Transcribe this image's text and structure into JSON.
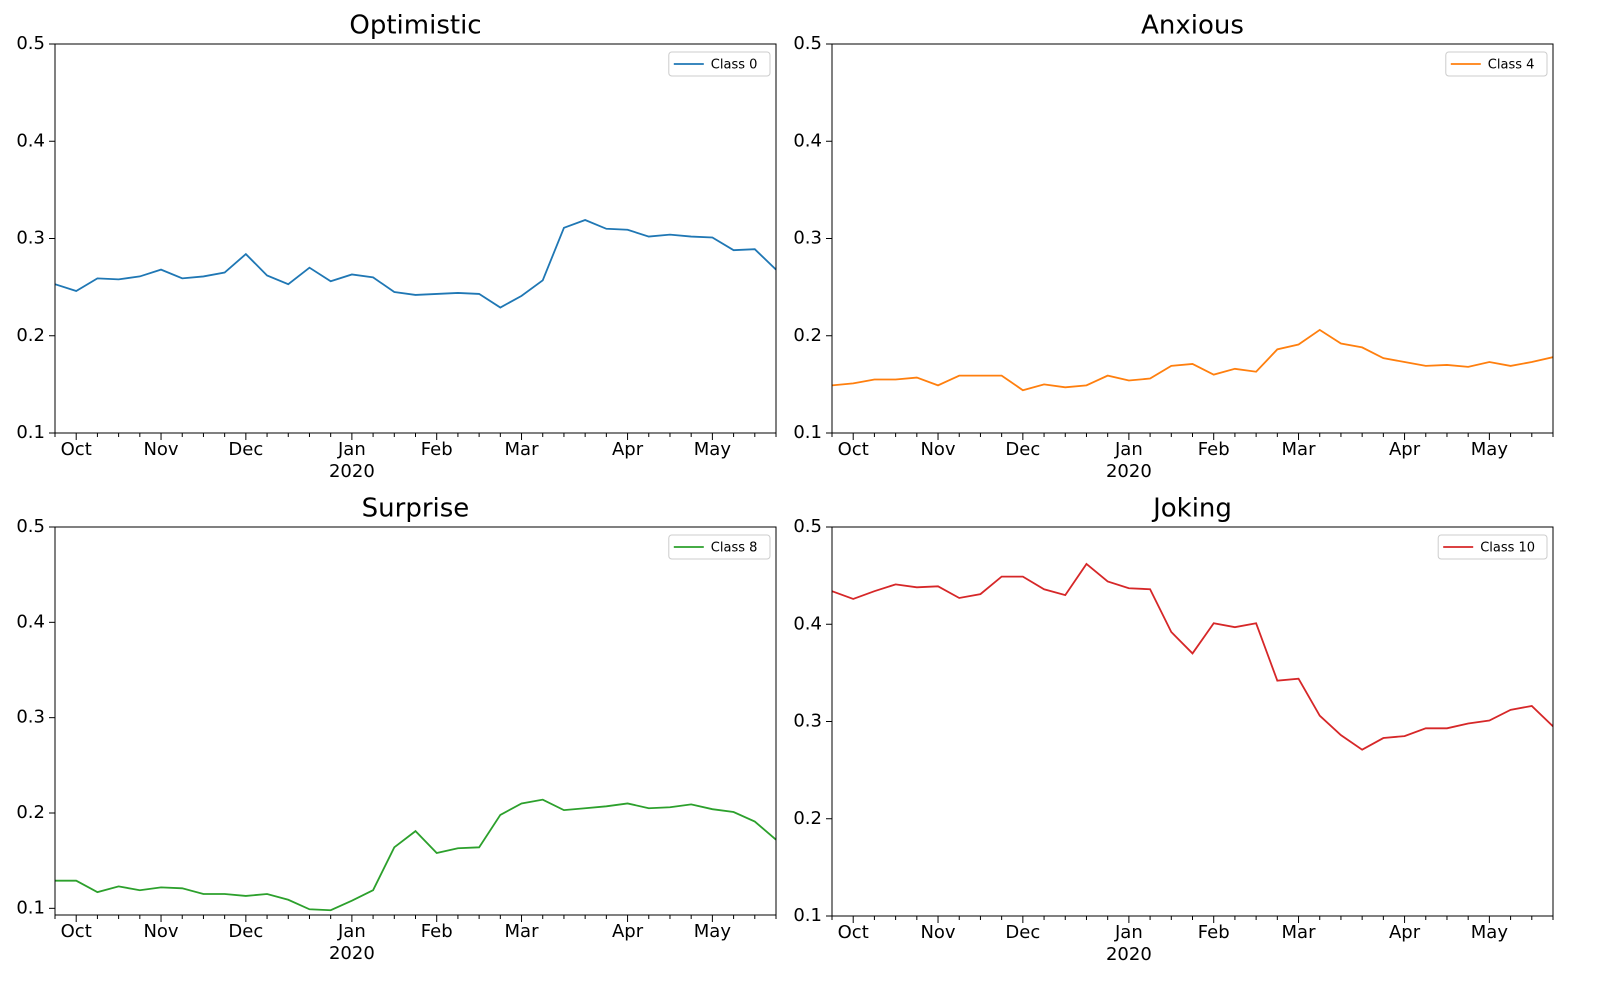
{
  "chart_data": [
    {
      "type": "line",
      "title": "Optimistic",
      "categories": [
        null,
        "Oct",
        null,
        null,
        null,
        "Nov",
        null,
        null,
        null,
        "Dec",
        null,
        null,
        null,
        null,
        "Jan\n2020",
        null,
        null,
        null,
        "Feb",
        null,
        null,
        null,
        "Mar",
        null,
        null,
        null,
        null,
        "Apr",
        null,
        null,
        null,
        "May",
        null,
        null,
        null
      ],
      "series": [
        {
          "name": "Class 0",
          "color": "#1f77b4",
          "values": [
            0.253,
            0.246,
            0.259,
            0.258,
            0.261,
            0.268,
            0.259,
            0.261,
            0.265,
            0.284,
            0.262,
            0.253,
            0.27,
            0.256,
            0.263,
            0.26,
            0.245,
            0.242,
            0.243,
            0.244,
            0.243,
            0.229,
            0.241,
            0.257,
            0.311,
            0.319,
            0.31,
            0.309,
            0.302,
            0.304,
            0.302,
            0.301,
            0.288,
            0.289,
            0.268
          ]
        }
      ],
      "ylim": [
        0.1,
        0.5
      ],
      "yticks": [
        0.1,
        0.2,
        0.3,
        0.4,
        0.5
      ],
      "legend": "upper right"
    },
    {
      "type": "line",
      "title": "Anxious",
      "categories": [
        null,
        "Oct",
        null,
        null,
        null,
        "Nov",
        null,
        null,
        null,
        "Dec",
        null,
        null,
        null,
        null,
        "Jan\n2020",
        null,
        null,
        null,
        "Feb",
        null,
        null,
        null,
        "Mar",
        null,
        null,
        null,
        null,
        "Apr",
        null,
        null,
        null,
        "May",
        null,
        null,
        null
      ],
      "series": [
        {
          "name": "Class 4",
          "color": "#ff7f0e",
          "values": [
            0.149,
            0.151,
            0.155,
            0.155,
            0.157,
            0.149,
            0.159,
            0.159,
            0.159,
            0.144,
            0.15,
            0.147,
            0.149,
            0.159,
            0.154,
            0.156,
            0.169,
            0.171,
            0.16,
            0.166,
            0.163,
            0.186,
            0.191,
            0.206,
            0.192,
            0.188,
            0.177,
            0.173,
            0.169,
            0.17,
            0.168,
            0.173,
            0.169,
            0.173,
            0.178
          ]
        }
      ],
      "ylim": [
        0.1,
        0.5
      ],
      "yticks": [
        0.1,
        0.2,
        0.3,
        0.4,
        0.5
      ],
      "legend": "upper right"
    },
    {
      "type": "line",
      "title": "Surprise",
      "categories": [
        null,
        "Oct",
        null,
        null,
        null,
        "Nov",
        null,
        null,
        null,
        "Dec",
        null,
        null,
        null,
        null,
        "Jan\n2020",
        null,
        null,
        null,
        "Feb",
        null,
        null,
        null,
        "Mar",
        null,
        null,
        null,
        null,
        "Apr",
        null,
        null,
        null,
        "May",
        null,
        null,
        null
      ],
      "series": [
        {
          "name": "Class 8",
          "color": "#2ca02c",
          "values": [
            0.129,
            0.129,
            0.117,
            0.123,
            0.119,
            0.122,
            0.121,
            0.115,
            0.115,
            0.113,
            0.115,
            0.109,
            0.099,
            0.098,
            0.108,
            0.119,
            0.164,
            0.181,
            0.158,
            0.163,
            0.164,
            0.198,
            0.21,
            0.214,
            0.203,
            0.205,
            0.207,
            0.21,
            0.205,
            0.206,
            0.209,
            0.204,
            0.201,
            0.191,
            0.172
          ]
        }
      ],
      "ylim": [
        0.093,
        0.5
      ],
      "yticks": [
        0.1,
        0.2,
        0.3,
        0.4,
        0.5
      ],
      "legend": "upper right"
    },
    {
      "type": "line",
      "title": "Joking",
      "categories": [
        null,
        "Oct",
        null,
        null,
        null,
        "Nov",
        null,
        null,
        null,
        "Dec",
        null,
        null,
        null,
        null,
        "Jan\n2020",
        null,
        null,
        null,
        "Feb",
        null,
        null,
        null,
        "Mar",
        null,
        null,
        null,
        null,
        "Apr",
        null,
        null,
        null,
        "May",
        null,
        null,
        null
      ],
      "series": [
        {
          "name": "Class 10",
          "color": "#d62728",
          "values": [
            0.434,
            0.426,
            0.434,
            0.441,
            0.438,
            0.439,
            0.427,
            0.431,
            0.449,
            0.449,
            0.436,
            0.43,
            0.462,
            0.444,
            0.437,
            0.436,
            0.392,
            0.37,
            0.401,
            0.397,
            0.401,
            0.342,
            0.344,
            0.306,
            0.286,
            0.271,
            0.283,
            0.285,
            0.293,
            0.293,
            0.298,
            0.301,
            0.312,
            0.316,
            0.295
          ]
        }
      ],
      "ylim": [
        0.1,
        0.5
      ],
      "yticks": [
        0.1,
        0.2,
        0.3,
        0.4,
        0.5
      ],
      "legend": "upper right"
    }
  ]
}
